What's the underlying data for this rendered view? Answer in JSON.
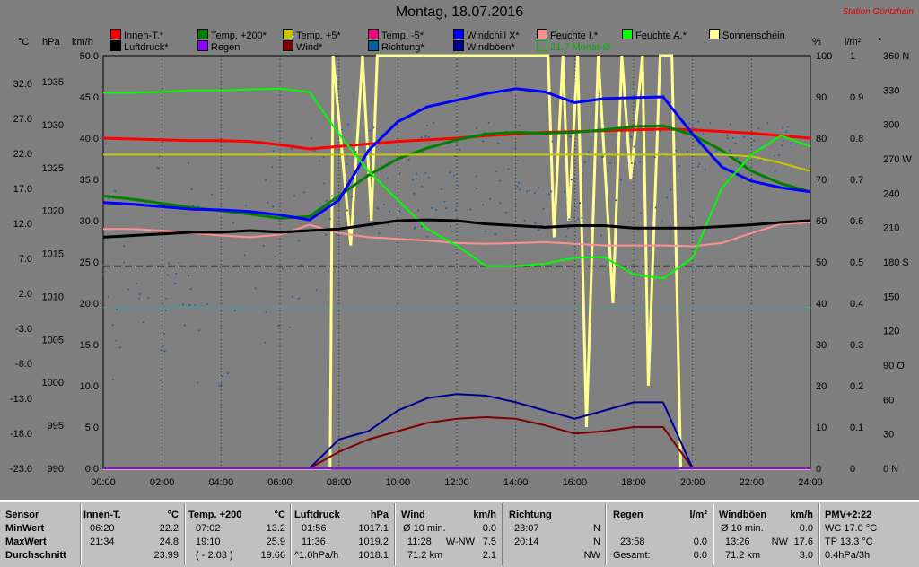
{
  "title": "Montag, 18.07.2016",
  "station": "Station Göritzhain",
  "units": {
    "c": "°C",
    "hpa": "hPa",
    "kmh": "km/h",
    "pct": "%",
    "lm2": "l/m²",
    "deg": "°"
  },
  "legend": [
    {
      "label": "Innen-T.*",
      "color": "#ff0000"
    },
    {
      "label": "Temp. +200*",
      "color": "#008000"
    },
    {
      "label": "Temp. +5*",
      "color": "#c8c800"
    },
    {
      "label": "Temp. -5*",
      "color": "#ff0080"
    },
    {
      "label": "Windchill X*",
      "color": "#0000ff"
    },
    {
      "label": "Feuchte I.*",
      "color": "#ff9090"
    },
    {
      "label": "Feuchte A.*",
      "color": "#00ff00"
    },
    {
      "label": "Sonnenschein",
      "color": "#ffff90"
    },
    {
      "label": "Luftdruck*",
      "color": "#000000"
    },
    {
      "label": "Regen",
      "color": "#9000ff"
    },
    {
      "label": "Wind*",
      "color": "#800000"
    },
    {
      "label": "Richtung*",
      "color": "#0060a0"
    },
    {
      "label": "Windböen*",
      "color": "#000090"
    },
    {
      "label": "21.7 Monat-Ø",
      "color": "#00c000"
    }
  ],
  "chart_data": {
    "type": "line",
    "x_ticks": [
      "00:00",
      "02:00",
      "04:00",
      "06:00",
      "08:00",
      "10:00",
      "12:00",
      "14:00",
      "16:00",
      "18:00",
      "20:00",
      "22:00",
      "24:00"
    ],
    "axes": {
      "celsius": [
        "32.0",
        "27.0",
        "22.0",
        "17.0",
        "12.0",
        "7.0",
        "2.0",
        "-3.0",
        "-8.0",
        "-13.0",
        "-18.0",
        "-23.0"
      ],
      "hpa": [
        "1035",
        "1030",
        "1025",
        "1020",
        "1015",
        "1010",
        "1005",
        "1000",
        "995",
        "990"
      ],
      "kmh": [
        "50.0",
        "45.0",
        "40.0",
        "35.0",
        "30.0",
        "25.0",
        "20.0",
        "15.0",
        "10.0",
        "5.0",
        "0.0"
      ],
      "percent": [
        "100",
        "90",
        "80",
        "70",
        "60",
        "50",
        "40",
        "30",
        "20",
        "10",
        "0"
      ],
      "lm2": [
        "1",
        "0.9",
        "0.8",
        "0.7",
        "0.6",
        "0.5",
        "0.4",
        "0.3",
        "0.2",
        "0.1",
        "0"
      ],
      "direction": [
        "360 N",
        "330",
        "300",
        "270 W",
        "240",
        "210",
        "180 S",
        "150",
        "120",
        "90 O",
        "60",
        "30",
        "0 N"
      ]
    },
    "kmh_range": [
      0,
      50
    ],
    "hours": [
      0,
      1,
      2,
      3,
      4,
      5,
      6,
      7,
      8,
      9,
      10,
      11,
      12,
      13,
      14,
      15,
      16,
      17,
      18,
      19,
      20,
      21,
      22,
      23,
      24
    ],
    "series": [
      {
        "name": "Innen-T.*",
        "color": "#ff0000",
        "width": 3,
        "values": [
          40.0,
          39.9,
          39.8,
          39.7,
          39.7,
          39.6,
          39.2,
          38.7,
          39.0,
          39.3,
          39.6,
          39.8,
          40.0,
          40.3,
          40.5,
          40.7,
          40.8,
          40.9,
          41.0,
          41.1,
          41.0,
          40.8,
          40.6,
          40.3,
          40.0
        ]
      },
      {
        "name": "Temp. +200*",
        "color": "#008000",
        "width": 3,
        "values": [
          33.0,
          32.6,
          32.1,
          31.6,
          31.2,
          30.8,
          30.3,
          30.5,
          33.0,
          35.5,
          37.5,
          38.8,
          39.8,
          40.5,
          40.7,
          40.6,
          40.7,
          41.0,
          41.4,
          41.5,
          40.4,
          38.5,
          36.0,
          34.5,
          33.5
        ]
      },
      {
        "name": "Temp. +5*",
        "color": "#c8c800",
        "width": 2,
        "values": [
          38.0,
          38.0,
          38.0,
          38.0,
          38.0,
          38.0,
          38.0,
          38.0,
          38.0,
          38.0,
          38.0,
          38.0,
          38.0,
          38.0,
          38.0,
          38.0,
          38.0,
          38.0,
          38.0,
          38.0,
          38.0,
          38.0,
          37.8,
          37.0,
          36.0
        ]
      },
      {
        "name": "Windchill X*",
        "color": "#0000ff",
        "width": 3,
        "values": [
          32.2,
          32.0,
          31.7,
          31.4,
          31.3,
          31.1,
          30.7,
          30.1,
          32.5,
          38.5,
          42.0,
          43.8,
          44.6,
          45.4,
          46.0,
          45.6,
          44.3,
          44.8,
          44.9,
          45.0,
          40.5,
          36.5,
          34.8,
          34.0,
          33.5
        ]
      },
      {
        "name": "Feuchte I.*",
        "color": "#ff9090",
        "width": 2,
        "values": [
          29.0,
          29.0,
          28.8,
          28.5,
          28.2,
          28.0,
          28.3,
          29.5,
          28.5,
          28.0,
          27.8,
          27.6,
          27.3,
          27.2,
          27.3,
          27.4,
          27.2,
          27.0,
          27.0,
          27.0,
          26.9,
          27.3,
          28.5,
          29.6,
          29.8
        ]
      },
      {
        "name": "Feuchte A.*",
        "color": "#00ff00",
        "width": 2,
        "values": [
          45.5,
          45.5,
          45.6,
          45.8,
          45.8,
          45.9,
          46.0,
          45.6,
          40.5,
          36.0,
          32.5,
          29.0,
          27.0,
          24.5,
          24.5,
          24.8,
          25.5,
          25.6,
          23.5,
          23.0,
          25.5,
          34.0,
          38.0,
          40.3,
          39.0
        ]
      },
      {
        "name": "Luftdruck*",
        "color": "#000000",
        "width": 3,
        "values": [
          28.0,
          28.2,
          28.4,
          28.6,
          28.6,
          28.8,
          28.6,
          28.8,
          29.0,
          29.5,
          30.0,
          30.1,
          30.0,
          29.6,
          29.4,
          29.2,
          29.4,
          29.4,
          29.1,
          29.1,
          29.1,
          29.3,
          29.5,
          29.8,
          30.0
        ]
      },
      {
        "name": "Wind*",
        "color": "#800000",
        "width": 2,
        "values": [
          0,
          0,
          0,
          0,
          0,
          0,
          0,
          0,
          2.0,
          3.5,
          4.5,
          5.5,
          6.0,
          6.2,
          6.0,
          5.2,
          4.2,
          4.5,
          5.0,
          5.0,
          0,
          0,
          0,
          0,
          0
        ]
      },
      {
        "name": "Windböen*",
        "color": "#000090",
        "width": 2,
        "values": [
          0,
          0,
          0,
          0,
          0,
          0,
          0,
          0,
          3.5,
          4.5,
          7.0,
          8.5,
          9.0,
          8.8,
          8.0,
          7.0,
          6.0,
          7.0,
          8.0,
          8.0,
          0,
          0,
          0,
          0,
          0
        ]
      },
      {
        "name": "Regen",
        "color": "#9000ff",
        "width": 2,
        "values": [
          0,
          0,
          0,
          0,
          0,
          0,
          0,
          0,
          0,
          0,
          0,
          0,
          0,
          0,
          0,
          0,
          0,
          0,
          0,
          0,
          0,
          0,
          0,
          0,
          0
        ]
      }
    ],
    "monthly_mean_c": 21.7,
    "dashed_line_kmh": 24.5,
    "teal_line_kmh": 19.5,
    "sunshine_kmh_segments": [
      [
        7.8,
        50
      ],
      [
        8.4,
        27
      ],
      [
        8.8,
        50
      ],
      [
        9.1,
        30
      ],
      [
        9.3,
        50
      ],
      [
        15.1,
        50
      ],
      [
        15.3,
        28
      ],
      [
        15.6,
        50
      ],
      [
        15.8,
        30
      ],
      [
        16.1,
        50
      ],
      [
        16.4,
        5
      ],
      [
        16.8,
        50
      ],
      [
        17.3,
        20
      ],
      [
        17.6,
        50
      ],
      [
        17.9,
        35
      ],
      [
        18.3,
        50
      ],
      [
        18.5,
        10
      ],
      [
        18.9,
        50
      ],
      [
        19.3,
        50
      ]
    ],
    "stats": {
      "labels": [
        "Sensor",
        "MinWert",
        "MaxWert",
        "Durchschnitt"
      ],
      "innen": {
        "title": "Innen-T.",
        "unit": "°C",
        "min_time": "06:20",
        "min": "22.2",
        "max_time": "21:34",
        "max": "24.8",
        "avg": "23.99"
      },
      "temp200": {
        "title": "Temp. +200",
        "unit": "°C",
        "min_time": "07:02",
        "min": "13.2",
        "max_time": "19:10",
        "max": "25.9",
        "avg_extra": "( - 2.03 )",
        "avg": "19.66"
      },
      "luftdruck": {
        "title": "Luftdruck",
        "unit": "hPa",
        "min_time": "01:56",
        "min": "1017.1",
        "max_time": "11:36",
        "max": "1019.2",
        "trend": "^1.0hPa/h",
        "avg": "1018.1"
      },
      "wind": {
        "title": "Wind",
        "unit": "km/h",
        "min_label": "Ø 10 min.",
        "min": "0.0",
        "max_time": "11:28",
        "max_dir": "W-NW",
        "max": "7.5",
        "total": "71.2 km",
        "avg": "2.1"
      },
      "richtung": {
        "title": "Richtung",
        "min_time": "23:07",
        "min": "N",
        "max_time": "20:14",
        "max": "N",
        "avg": "NW"
      },
      "regen": {
        "title": "Regen",
        "unit": "l/m²",
        "max_time": "23:58",
        "max": "0.0",
        "total_label": "Gesamt:",
        "total": "0.0"
      },
      "boeen": {
        "title": "Windböen",
        "unit": "km/h",
        "min_label": "Ø 10 min.",
        "min": "0.0",
        "max_time": "13:26",
        "max_dir": "NW",
        "max": "17.6",
        "total": "71.2 km",
        "avg": "3.0"
      },
      "pmv": {
        "title": "PMV+2:22",
        "wc": "WC 17.0 °C",
        "tp": "TP 13.3 °C",
        "trend": "0.4hPa/3h"
      }
    }
  }
}
